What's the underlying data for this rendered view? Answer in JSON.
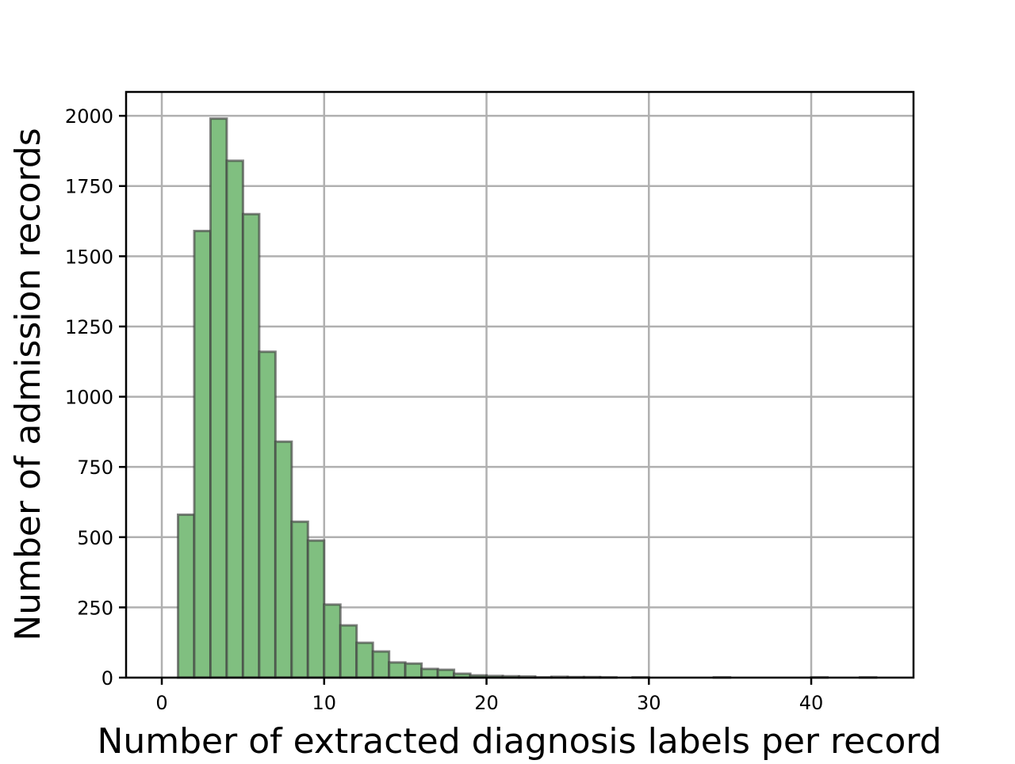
{
  "chart_data": {
    "type": "bar",
    "title": "",
    "xlabel": "Number of extracted diagnosis labels per record",
    "ylabel": "Number of admission records",
    "bin_width": 1,
    "bin_starts": [
      1,
      2,
      3,
      4,
      5,
      6,
      7,
      8,
      9,
      10,
      11,
      12,
      13,
      14,
      15,
      16,
      17,
      18,
      19,
      20,
      21,
      22,
      23,
      24,
      25,
      26,
      27,
      28,
      29,
      30,
      31,
      32,
      33,
      34,
      35,
      36,
      37,
      38,
      39,
      40,
      41,
      42,
      43
    ],
    "values": [
      580,
      1590,
      1990,
      1840,
      1650,
      1160,
      840,
      555,
      488,
      260,
      186,
      124,
      93,
      54,
      50,
      31,
      28,
      14,
      8,
      6,
      5,
      4,
      1,
      3,
      2,
      2,
      1,
      0,
      1,
      0,
      0,
      0,
      0,
      1,
      0,
      0,
      0,
      0,
      0,
      1,
      0,
      0,
      1
    ],
    "xlim": [
      -2.2,
      46.3
    ],
    "ylim": [
      0,
      2085
    ],
    "xticks": [
      "0",
      "10",
      "20",
      "30",
      "40"
    ],
    "yticks": [
      "0",
      "250",
      "500",
      "750",
      "1000",
      "1250",
      "1500",
      "1750",
      "2000"
    ],
    "grid": true,
    "colors": {
      "bar_fill": "#80bf80",
      "bar_edge": "#404040",
      "grid": "#b0b0b0"
    }
  }
}
